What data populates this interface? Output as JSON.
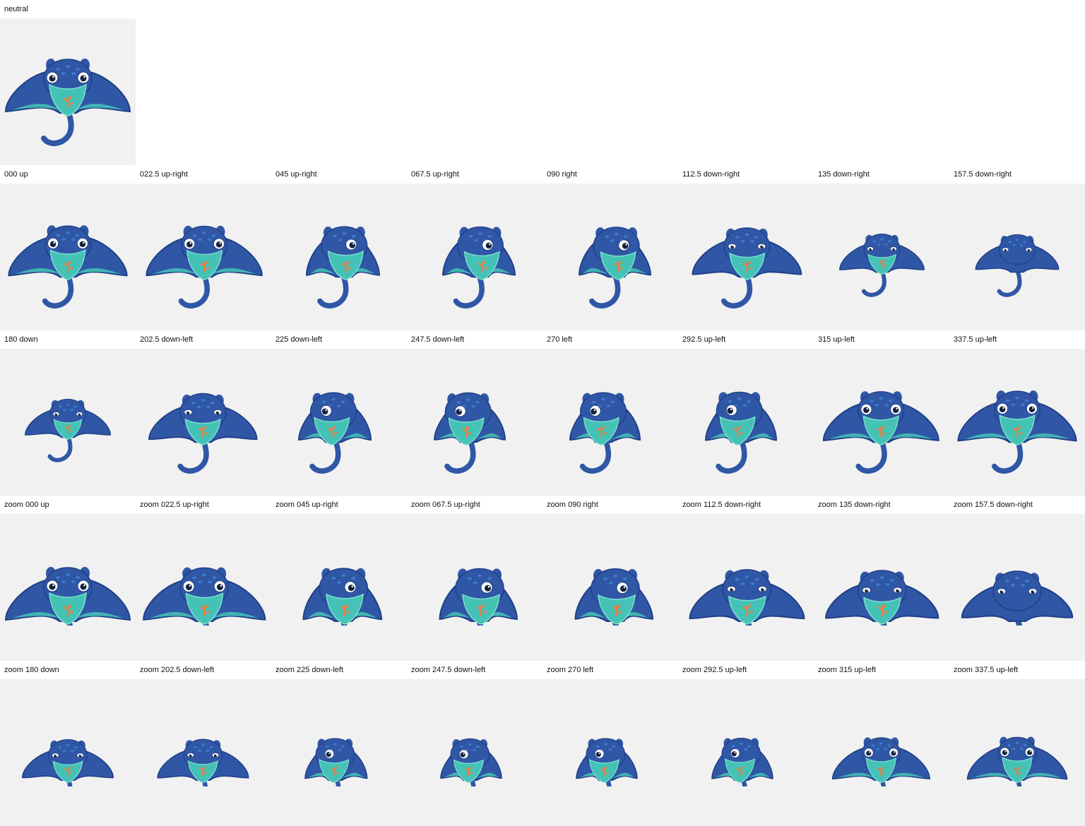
{
  "neutral": {
    "label": "neutral"
  },
  "rows": [
    {
      "id": "row-1",
      "cells": [
        {
          "label": "000 up",
          "view": "front",
          "yaw": 0,
          "tilt": 0
        },
        {
          "label": "022.5 up-right",
          "view": "front",
          "yaw": 0.08,
          "tilt": 0.05
        },
        {
          "label": "045 up-right",
          "view": "side",
          "yaw": 0.55,
          "tilt": 0.15
        },
        {
          "label": "067.5 up-right",
          "view": "side",
          "yaw": 0.6,
          "tilt": 0.2
        },
        {
          "label": "090 right",
          "view": "side",
          "yaw": 0.65,
          "tilt": 0.25
        },
        {
          "label": "112.5 down-right",
          "view": "back",
          "yaw": 0.1,
          "tilt": 0.4
        },
        {
          "label": "135 down-right",
          "view": "back",
          "yaw": 0.05,
          "tilt": 0.55
        },
        {
          "label": "157.5 down-right",
          "view": "back",
          "yaw": 0,
          "tilt": 0.7
        }
      ]
    },
    {
      "id": "row-2",
      "cells": [
        {
          "label": "180 down",
          "view": "back",
          "yaw": 0,
          "tilt": 0.55
        },
        {
          "label": "202.5 down-left",
          "view": "back",
          "yaw": -0.05,
          "tilt": 0.5
        },
        {
          "label": "225 down-left",
          "view": "side",
          "yaw": -0.6,
          "tilt": 0.3
        },
        {
          "label": "247.5 down-left",
          "view": "side",
          "yaw": -0.7,
          "tilt": 0.35
        },
        {
          "label": "270 left",
          "view": "side",
          "yaw": -0.75,
          "tilt": 0.3
        },
        {
          "label": "292.5 up-left",
          "view": "side",
          "yaw": -0.7,
          "tilt": 0.2
        },
        {
          "label": "315 up-left",
          "view": "front",
          "yaw": -0.05,
          "tilt": 0.1
        },
        {
          "label": "337.5 up-left",
          "view": "front",
          "yaw": 0,
          "tilt": 0
        }
      ]
    },
    {
      "id": "row-3",
      "zoom": true,
      "cells": [
        {
          "label": "zoom 000 up",
          "view": "front",
          "yaw": 0,
          "tilt": 0
        },
        {
          "label": "zoom 022.5 up-right",
          "view": "front",
          "yaw": 0.08,
          "tilt": 0.05
        },
        {
          "label": "zoom 045 up-right",
          "view": "side",
          "yaw": 0.45,
          "tilt": 0.15
        },
        {
          "label": "zoom 067.5 up-right",
          "view": "side",
          "yaw": 0.5,
          "tilt": 0.2
        },
        {
          "label": "zoom 090 right",
          "view": "side",
          "yaw": 0.5,
          "tilt": 0.25
        },
        {
          "label": "zoom 112.5 down-right",
          "view": "back",
          "yaw": 0.1,
          "tilt": 0.4
        },
        {
          "label": "zoom 135 down-right",
          "view": "back",
          "yaw": 0.05,
          "tilt": 0.55
        },
        {
          "label": "zoom 157.5 down-right",
          "view": "back",
          "yaw": 0,
          "tilt": 0.7
        }
      ]
    },
    {
      "id": "row-4",
      "zoom": true,
      "cells": [
        {
          "label": "zoom 180 down",
          "view": "back",
          "yaw": 0,
          "tilt": 0.55
        },
        {
          "label": "zoom 202.5 down-left",
          "view": "back",
          "yaw": -0.05,
          "tilt": 0.5
        },
        {
          "label": "zoom 225 down-left",
          "view": "side",
          "yaw": -0.5,
          "tilt": 0.3
        },
        {
          "label": "zoom 247.5 down-left",
          "view": "side",
          "yaw": -0.6,
          "tilt": 0.35
        },
        {
          "label": "zoom 270 left",
          "view": "side",
          "yaw": -0.6,
          "tilt": 0.3
        },
        {
          "label": "zoom 292.5 up-left",
          "view": "side",
          "yaw": -0.6,
          "tilt": 0.2
        },
        {
          "label": "zoom 315 up-left",
          "view": "front",
          "yaw": -0.05,
          "tilt": 0.1
        },
        {
          "label": "zoom 337.5 up-left",
          "view": "front",
          "yaw": 0,
          "tilt": 0
        }
      ]
    }
  ],
  "colors": {
    "page_bg": "#ffffff",
    "tile_bg": "#f1f1f1",
    "body_blue": "#2f57a6",
    "body_dark": "#203f86",
    "belly_teal": "#45c2b6",
    "belly_light": "#7fe0cf",
    "spot": "#3f78c9",
    "coral": "#f07a3a",
    "eye_white": "#ffffff",
    "pupil": "#14213d"
  }
}
